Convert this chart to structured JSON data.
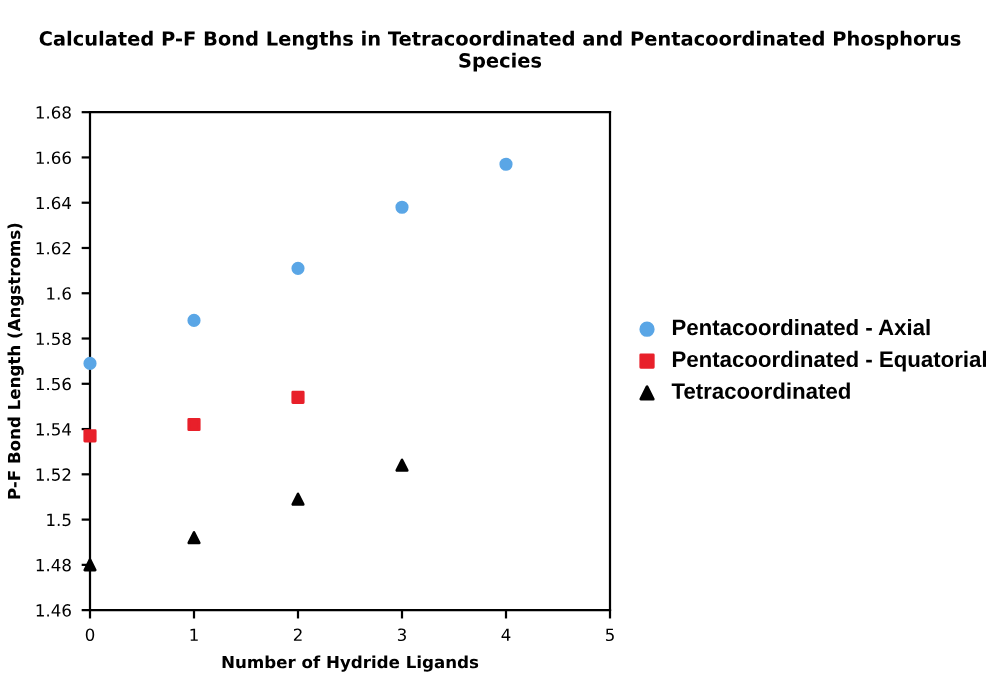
{
  "chart_data": {
    "type": "scatter",
    "title": "Calculated P-F Bond Lengths in Tetracoordinated and Pentacoordinated Phosphorus Species",
    "xlabel": "Number of Hydride Ligands",
    "ylabel": "P-F Bond Length (Angstroms)",
    "xlim": [
      0,
      5
    ],
    "xticks": [
      0,
      1,
      2,
      3,
      4,
      5
    ],
    "ylim": [
      1.46,
      1.68
    ],
    "yticks": [
      1.46,
      1.48,
      1.5,
      1.52,
      1.54,
      1.56,
      1.58,
      1.6,
      1.62,
      1.64,
      1.66,
      1.68
    ],
    "grid": false,
    "legend": "right",
    "series": [
      {
        "name": "Pentacoordinated - Axial",
        "color": "#5aa6e6",
        "marker": "circle",
        "x": [
          0,
          1,
          2,
          3,
          4
        ],
        "values": [
          1.569,
          1.588,
          1.611,
          1.638,
          1.657
        ]
      },
      {
        "name": "Pentacoordinated - Equatorial",
        "color": "#e8202a",
        "marker": "square",
        "x": [
          0,
          1,
          2
        ],
        "values": [
          1.537,
          1.542,
          1.554
        ]
      },
      {
        "name": "Tetracoordinated",
        "color": "#000000",
        "marker": "triangle",
        "x": [
          0,
          1,
          2,
          3
        ],
        "values": [
          1.48,
          1.492,
          1.509,
          1.524
        ]
      }
    ]
  }
}
